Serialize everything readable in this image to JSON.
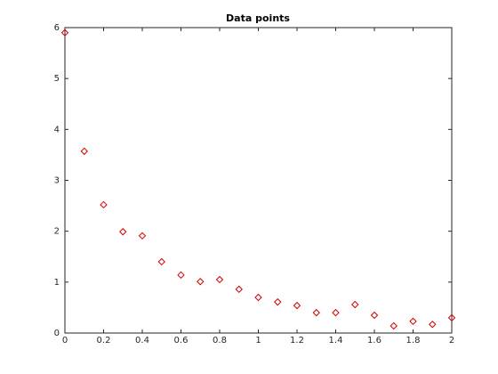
{
  "chart_data": {
    "type": "scatter",
    "title": "Data points",
    "x": [
      0,
      0.1,
      0.2,
      0.3,
      0.4,
      0.5,
      0.6,
      0.7,
      0.8,
      0.9,
      1.0,
      1.1,
      1.2,
      1.3,
      1.4,
      1.5,
      1.6,
      1.7,
      1.8,
      1.9,
      2.0
    ],
    "values": [
      5.9,
      3.57,
      2.52,
      1.99,
      1.91,
      1.4,
      1.14,
      1.01,
      1.05,
      0.86,
      0.7,
      0.61,
      0.54,
      0.4,
      0.4,
      0.56,
      0.35,
      0.14,
      0.23,
      0.17,
      0.3
    ],
    "color": "#d00000",
    "marker": "diamond",
    "xlim": [
      0,
      2
    ],
    "xticks": [
      0,
      0.2,
      0.4,
      0.6,
      0.8,
      1,
      1.2,
      1.4,
      1.6,
      1.8,
      2
    ],
    "ylim": [
      0,
      6
    ],
    "yticks": [
      0,
      1,
      2,
      3,
      4,
      5,
      6
    ],
    "grid": false
  }
}
